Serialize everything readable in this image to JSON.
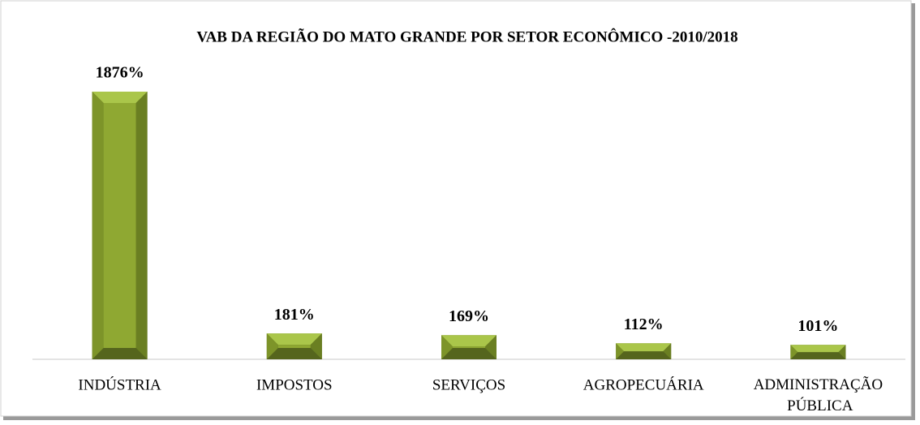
{
  "chart_data": {
    "type": "bar",
    "title": "VAB DA REGIÃO DO MATO GRANDE POR SETOR ECONÔMICO -2010/2018",
    "categories": [
      "INDÚSTRIA",
      "IMPOSTOS",
      "SERVIÇOS",
      "AGROPECUÁRIA",
      "ADMINISTRAÇÃO PÚBLICA"
    ],
    "values": [
      1876,
      181,
      169,
      112,
      101
    ],
    "value_labels": [
      "1876%",
      "181%",
      "169%",
      "112%",
      "101%"
    ],
    "color": "#8fa832"
  }
}
